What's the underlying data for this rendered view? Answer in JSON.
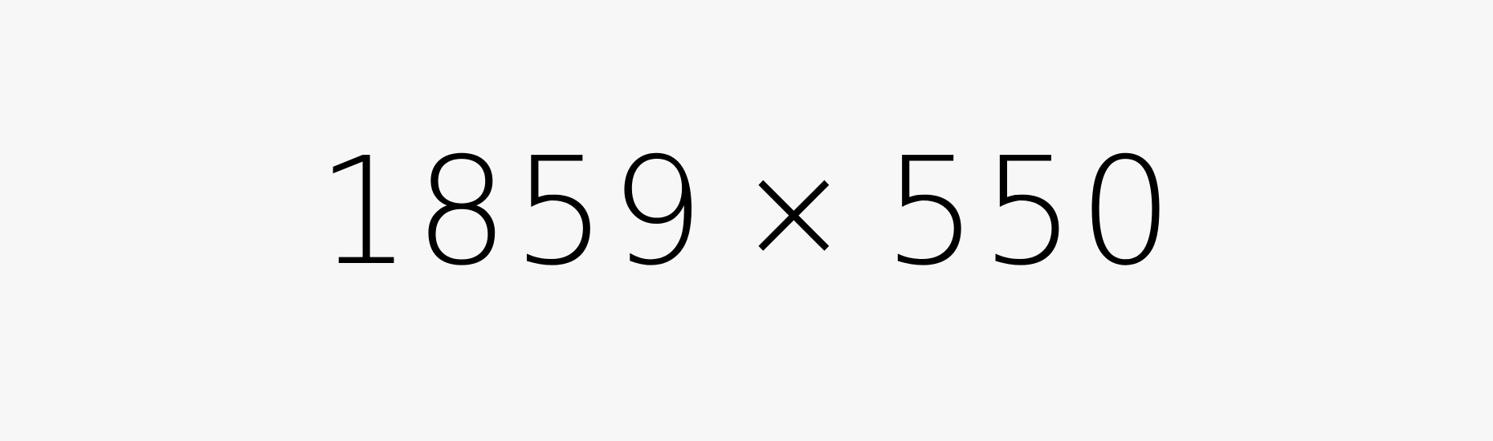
{
  "label": {
    "width": "1859",
    "separator": "×",
    "height": "550"
  },
  "colors": {
    "background": "#f7f7f7",
    "text": "#000000"
  }
}
